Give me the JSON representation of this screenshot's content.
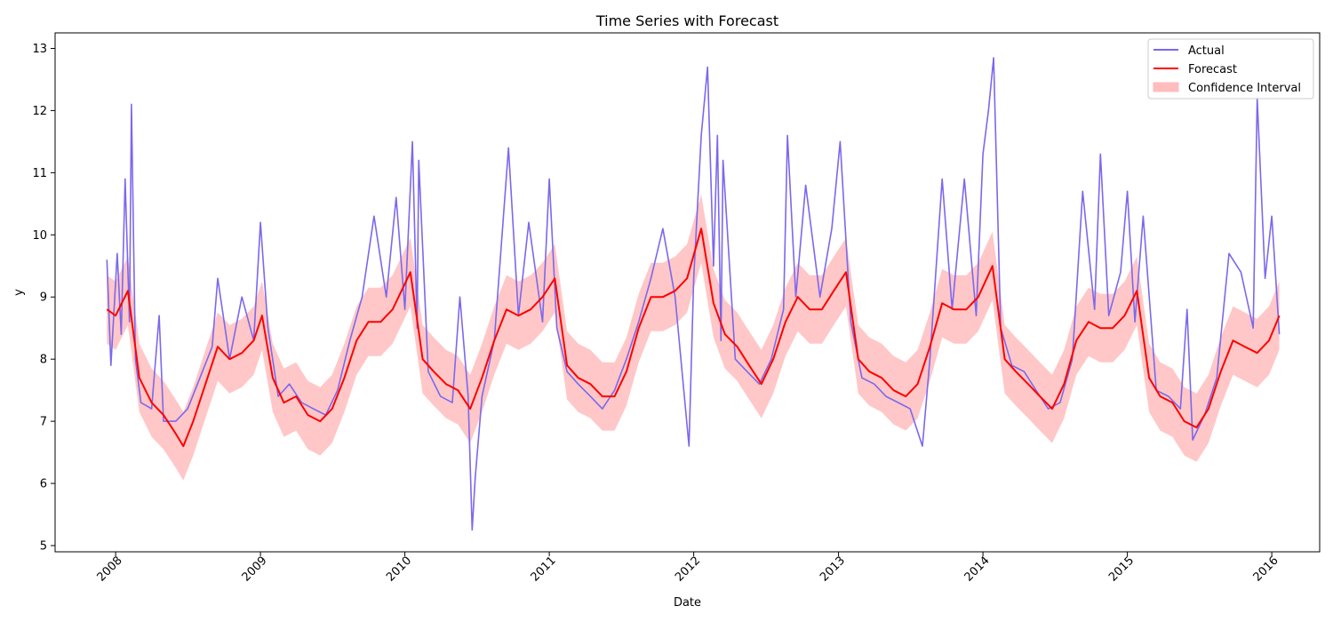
{
  "chart_data": {
    "type": "line",
    "title": "Time Series with Forecast",
    "xlabel": "Date",
    "ylabel": "y",
    "xlim": [
      "2007-08-01",
      "2016-05-01"
    ],
    "ylim": [
      4.9,
      13.25
    ],
    "x_ticks": [
      "2008",
      "2009",
      "2010",
      "2011",
      "2012",
      "2013",
      "2014",
      "2015",
      "2016"
    ],
    "y_ticks": [
      "5",
      "6",
      "7",
      "8",
      "9",
      "10",
      "11",
      "12",
      "13"
    ],
    "grid": false,
    "legend_position": "top-right",
    "colors": {
      "actual": "#7b68ee",
      "forecast": "#ff0000",
      "confidence": "#ffbdbd"
    },
    "series": [
      {
        "name": "Actual",
        "style": "line",
        "points": [
          [
            "2007-12-10",
            9.6
          ],
          [
            "2007-12-20",
            7.9
          ],
          [
            "2008-01-05",
            9.7
          ],
          [
            "2008-01-15",
            8.4
          ],
          [
            "2008-01-25",
            10.9
          ],
          [
            "2008-02-05",
            8.6
          ],
          [
            "2008-02-10",
            12.1
          ],
          [
            "2008-02-20",
            8.0
          ],
          [
            "2008-03-05",
            7.3
          ],
          [
            "2008-04-01",
            7.2
          ],
          [
            "2008-04-20",
            8.7
          ],
          [
            "2008-05-01",
            7.0
          ],
          [
            "2008-06-01",
            7.0
          ],
          [
            "2008-07-01",
            7.2
          ],
          [
            "2008-08-01",
            7.7
          ],
          [
            "2008-09-01",
            8.2
          ],
          [
            "2008-09-15",
            9.3
          ],
          [
            "2008-10-15",
            8.0
          ],
          [
            "2008-11-15",
            9.0
          ],
          [
            "2008-12-15",
            8.3
          ],
          [
            "2009-01-01",
            10.2
          ],
          [
            "2009-01-20",
            8.5
          ],
          [
            "2009-02-15",
            7.4
          ],
          [
            "2009-03-15",
            7.6
          ],
          [
            "2009-04-15",
            7.3
          ],
          [
            "2009-05-15",
            7.2
          ],
          [
            "2009-06-15",
            7.1
          ],
          [
            "2009-07-15",
            7.5
          ],
          [
            "2009-08-15",
            8.3
          ],
          [
            "2009-09-15",
            9.0
          ],
          [
            "2009-10-15",
            10.3
          ],
          [
            "2009-11-15",
            9.0
          ],
          [
            "2009-12-10",
            10.6
          ],
          [
            "2010-01-01",
            8.8
          ],
          [
            "2010-01-20",
            11.5
          ],
          [
            "2010-02-01",
            8.5
          ],
          [
            "2010-02-05",
            11.2
          ],
          [
            "2010-03-01",
            7.8
          ],
          [
            "2010-04-01",
            7.4
          ],
          [
            "2010-05-01",
            7.3
          ],
          [
            "2010-05-20",
            9.0
          ],
          [
            "2010-06-10",
            7.4
          ],
          [
            "2010-06-20",
            5.25
          ],
          [
            "2010-06-28",
            6.1
          ],
          [
            "2010-07-15",
            7.4
          ],
          [
            "2010-08-15",
            8.3
          ],
          [
            "2010-09-20",
            11.4
          ],
          [
            "2010-10-15",
            8.7
          ],
          [
            "2010-11-10",
            10.2
          ],
          [
            "2010-12-15",
            8.6
          ],
          [
            "2011-01-01",
            10.9
          ],
          [
            "2011-01-20",
            8.5
          ],
          [
            "2011-02-15",
            7.8
          ],
          [
            "2011-03-15",
            7.6
          ],
          [
            "2011-04-15",
            7.4
          ],
          [
            "2011-05-15",
            7.2
          ],
          [
            "2011-06-15",
            7.5
          ],
          [
            "2011-07-15",
            8.0
          ],
          [
            "2011-08-15",
            8.6
          ],
          [
            "2011-09-15",
            9.3
          ],
          [
            "2011-10-15",
            10.1
          ],
          [
            "2011-11-15",
            9.0
          ],
          [
            "2011-12-20",
            6.6
          ],
          [
            "2012-01-01",
            9.3
          ],
          [
            "2012-01-20",
            11.6
          ],
          [
            "2012-02-05",
            12.7
          ],
          [
            "2012-02-20",
            9.5
          ],
          [
            "2012-03-01",
            11.6
          ],
          [
            "2012-03-10",
            8.3
          ],
          [
            "2012-03-15",
            11.2
          ],
          [
            "2012-04-15",
            8.0
          ],
          [
            "2012-05-15",
            7.8
          ],
          [
            "2012-06-15",
            7.6
          ],
          [
            "2012-07-15",
            8.0
          ],
          [
            "2012-08-15",
            8.8
          ],
          [
            "2012-08-25",
            11.6
          ],
          [
            "2012-09-15",
            9.0
          ],
          [
            "2012-10-10",
            10.8
          ],
          [
            "2012-11-15",
            9.0
          ],
          [
            "2012-12-15",
            10.1
          ],
          [
            "2013-01-05",
            11.5
          ],
          [
            "2013-02-01",
            8.6
          ],
          [
            "2013-03-01",
            7.7
          ],
          [
            "2013-04-01",
            7.6
          ],
          [
            "2013-05-01",
            7.4
          ],
          [
            "2013-06-01",
            7.3
          ],
          [
            "2013-07-01",
            7.2
          ],
          [
            "2013-08-01",
            6.6
          ],
          [
            "2013-08-20",
            8.0
          ],
          [
            "2013-09-20",
            10.9
          ],
          [
            "2013-10-15",
            8.8
          ],
          [
            "2013-11-15",
            10.9
          ],
          [
            "2013-12-15",
            8.7
          ],
          [
            "2014-01-01",
            11.3
          ],
          [
            "2014-01-15",
            12.0
          ],
          [
            "2014-01-28",
            12.85
          ],
          [
            "2014-02-15",
            8.5
          ],
          [
            "2014-03-15",
            7.9
          ],
          [
            "2014-04-15",
            7.8
          ],
          [
            "2014-05-15",
            7.5
          ],
          [
            "2014-06-15",
            7.2
          ],
          [
            "2014-07-15",
            7.3
          ],
          [
            "2014-08-15",
            8.0
          ],
          [
            "2014-09-10",
            10.7
          ],
          [
            "2014-10-10",
            8.8
          ],
          [
            "2014-10-25",
            11.3
          ],
          [
            "2014-11-15",
            8.7
          ],
          [
            "2014-12-15",
            9.4
          ],
          [
            "2015-01-01",
            10.7
          ],
          [
            "2015-01-20",
            8.6
          ],
          [
            "2015-02-10",
            10.3
          ],
          [
            "2015-03-15",
            7.5
          ],
          [
            "2015-04-15",
            7.4
          ],
          [
            "2015-05-15",
            7.2
          ],
          [
            "2015-06-01",
            8.8
          ],
          [
            "2015-06-15",
            6.7
          ],
          [
            "2015-07-15",
            7.1
          ],
          [
            "2015-08-15",
            7.7
          ],
          [
            "2015-09-15",
            9.7
          ],
          [
            "2015-10-15",
            9.4
          ],
          [
            "2015-11-15",
            8.5
          ],
          [
            "2015-11-25",
            12.2
          ],
          [
            "2015-12-15",
            9.3
          ],
          [
            "2016-01-01",
            10.3
          ],
          [
            "2016-01-20",
            8.4
          ]
        ]
      },
      {
        "name": "Forecast",
        "style": "line",
        "points": [
          [
            "2007-12-10",
            8.8
          ],
          [
            "2008-01-01",
            8.7
          ],
          [
            "2008-02-01",
            9.1
          ],
          [
            "2008-03-01",
            7.7
          ],
          [
            "2008-04-01",
            7.3
          ],
          [
            "2008-05-01",
            7.1
          ],
          [
            "2008-06-01",
            6.8
          ],
          [
            "2008-06-20",
            6.6
          ],
          [
            "2008-07-15",
            7.0
          ],
          [
            "2008-08-15",
            7.6
          ],
          [
            "2008-09-15",
            8.2
          ],
          [
            "2008-10-15",
            8.0
          ],
          [
            "2008-11-15",
            8.1
          ],
          [
            "2008-12-15",
            8.3
          ],
          [
            "2009-01-05",
            8.7
          ],
          [
            "2009-02-01",
            7.7
          ],
          [
            "2009-03-01",
            7.3
          ],
          [
            "2009-04-01",
            7.4
          ],
          [
            "2009-05-01",
            7.1
          ],
          [
            "2009-06-01",
            7.0
          ],
          [
            "2009-07-01",
            7.2
          ],
          [
            "2009-08-01",
            7.7
          ],
          [
            "2009-09-01",
            8.3
          ],
          [
            "2009-10-01",
            8.6
          ],
          [
            "2009-11-01",
            8.6
          ],
          [
            "2009-12-01",
            8.8
          ],
          [
            "2010-01-15",
            9.4
          ],
          [
            "2010-02-15",
            8.0
          ],
          [
            "2010-03-15",
            7.8
          ],
          [
            "2010-04-15",
            7.6
          ],
          [
            "2010-05-15",
            7.5
          ],
          [
            "2010-06-15",
            7.2
          ],
          [
            "2010-07-15",
            7.7
          ],
          [
            "2010-08-15",
            8.3
          ],
          [
            "2010-09-15",
            8.8
          ],
          [
            "2010-10-15",
            8.7
          ],
          [
            "2010-11-15",
            8.8
          ],
          [
            "2010-12-15",
            9.0
          ],
          [
            "2011-01-15",
            9.3
          ],
          [
            "2011-02-15",
            7.9
          ],
          [
            "2011-03-15",
            7.7
          ],
          [
            "2011-04-15",
            7.6
          ],
          [
            "2011-05-15",
            7.4
          ],
          [
            "2011-06-15",
            7.4
          ],
          [
            "2011-07-15",
            7.8
          ],
          [
            "2011-08-15",
            8.5
          ],
          [
            "2011-09-15",
            9.0
          ],
          [
            "2011-10-15",
            9.0
          ],
          [
            "2011-11-15",
            9.1
          ],
          [
            "2011-12-15",
            9.3
          ],
          [
            "2012-01-20",
            10.1
          ],
          [
            "2012-02-20",
            8.9
          ],
          [
            "2012-03-20",
            8.4
          ],
          [
            "2012-04-20",
            8.2
          ],
          [
            "2012-05-20",
            7.9
          ],
          [
            "2012-06-20",
            7.6
          ],
          [
            "2012-07-20",
            8.0
          ],
          [
            "2012-08-20",
            8.6
          ],
          [
            "2012-09-20",
            9.0
          ],
          [
            "2012-10-20",
            8.8
          ],
          [
            "2012-11-20",
            8.8
          ],
          [
            "2012-12-20",
            9.1
          ],
          [
            "2013-01-20",
            9.4
          ],
          [
            "2013-02-20",
            8.0
          ],
          [
            "2013-03-20",
            7.8
          ],
          [
            "2013-04-20",
            7.7
          ],
          [
            "2013-05-20",
            7.5
          ],
          [
            "2013-06-20",
            7.4
          ],
          [
            "2013-07-20",
            7.6
          ],
          [
            "2013-08-20",
            8.2
          ],
          [
            "2013-09-20",
            8.9
          ],
          [
            "2013-10-20",
            8.8
          ],
          [
            "2013-11-20",
            8.8
          ],
          [
            "2013-12-20",
            9.0
          ],
          [
            "2014-01-25",
            9.5
          ],
          [
            "2014-02-25",
            8.0
          ],
          [
            "2014-03-25",
            7.8
          ],
          [
            "2014-04-25",
            7.6
          ],
          [
            "2014-05-25",
            7.4
          ],
          [
            "2014-06-25",
            7.2
          ],
          [
            "2014-07-25",
            7.6
          ],
          [
            "2014-08-25",
            8.3
          ],
          [
            "2014-09-25",
            8.6
          ],
          [
            "2014-10-25",
            8.5
          ],
          [
            "2014-11-25",
            8.5
          ],
          [
            "2014-12-25",
            8.7
          ],
          [
            "2015-01-25",
            9.1
          ],
          [
            "2015-02-25",
            7.7
          ],
          [
            "2015-03-25",
            7.4
          ],
          [
            "2015-04-25",
            7.3
          ],
          [
            "2015-05-25",
            7.0
          ],
          [
            "2015-06-25",
            6.9
          ],
          [
            "2015-07-25",
            7.2
          ],
          [
            "2015-08-25",
            7.8
          ],
          [
            "2015-09-25",
            8.3
          ],
          [
            "2015-10-25",
            8.2
          ],
          [
            "2015-11-25",
            8.1
          ],
          [
            "2015-12-25",
            8.3
          ],
          [
            "2016-01-20",
            8.7
          ]
        ]
      },
      {
        "name": "Confidence Interval",
        "style": "band",
        "half_width": 0.55
      }
    ]
  }
}
